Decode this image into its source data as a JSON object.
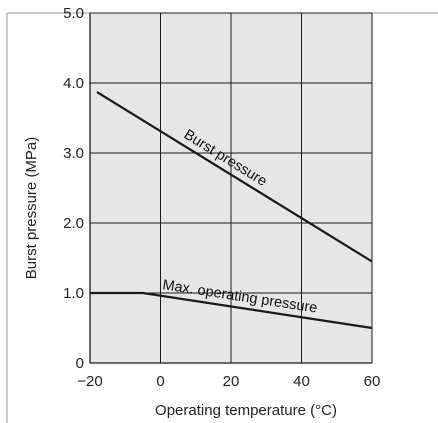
{
  "chart_data": {
    "type": "line",
    "title": "",
    "xlabel": "Operating temperature (°C)",
    "ylabel": "Burst pressure (MPa)",
    "xlim": [
      -20,
      60
    ],
    "ylim": [
      0,
      5.0
    ],
    "x_ticks": [
      -20,
      0,
      20,
      40,
      60
    ],
    "x_tick_labels": [
      "−20",
      "0",
      "20",
      "40",
      "60"
    ],
    "y_ticks": [
      0,
      1.0,
      2.0,
      3.0,
      4.0,
      5.0
    ],
    "y_tick_labels": [
      "0",
      "1.0",
      "2.0",
      "3.0",
      "4.0",
      "5.0"
    ],
    "grid": true,
    "legend": "none",
    "colors": {
      "plot_background": "#e6e6e6",
      "grid": "#1a1a1a",
      "line": "#1a1a1a"
    },
    "series": [
      {
        "name": "Burst pressure",
        "x": [
          -18,
          60
        ],
        "y": [
          3.87,
          1.45
        ]
      },
      {
        "name": "Max. operating pressure",
        "x": [
          -20,
          -5,
          60
        ],
        "y": [
          1.0,
          1.0,
          0.5
        ]
      }
    ]
  }
}
